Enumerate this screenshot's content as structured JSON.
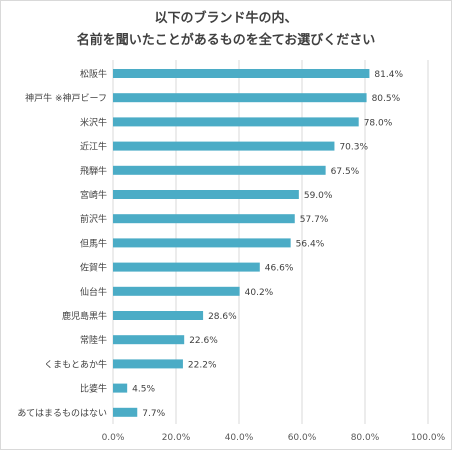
{
  "chart_data": {
    "type": "bar",
    "orientation": "horizontal",
    "title_lines": [
      "以下のブランド牛の内、",
      "名前を聞いたことがあるものを全てお選びください"
    ],
    "categories": [
      "松阪牛",
      "神戸牛 ※神戸ビーフ",
      "米沢牛",
      "近江牛",
      "飛騨牛",
      "宮崎牛",
      "前沢牛",
      "但馬牛",
      "佐賀牛",
      "仙台牛",
      "鹿児島黒牛",
      "常陸牛",
      "くまもとあか牛",
      "比婆牛",
      "あてはまるものはない"
    ],
    "values": [
      81.4,
      80.5,
      78.0,
      70.3,
      67.5,
      59.0,
      57.7,
      56.4,
      46.6,
      40.2,
      28.6,
      22.6,
      22.2,
      4.5,
      7.7
    ],
    "value_labels": [
      "81.4%",
      "80.5%",
      "78.0%",
      "70.3%",
      "67.5%",
      "59.0%",
      "57.7%",
      "56.4%",
      "46.6%",
      "40.2%",
      "28.6%",
      "22.6%",
      "22.2%",
      "4.5%",
      "7.7%"
    ],
    "xlim": [
      0,
      100
    ],
    "xticks": [
      0,
      20,
      40,
      60,
      80,
      100
    ],
    "xtick_labels": [
      "0.0%",
      "20.0%",
      "40.0%",
      "60.0%",
      "80.0%",
      "100.0%"
    ],
    "grid": "vertical",
    "legend": "none",
    "bar_color": "#4bacc6"
  }
}
